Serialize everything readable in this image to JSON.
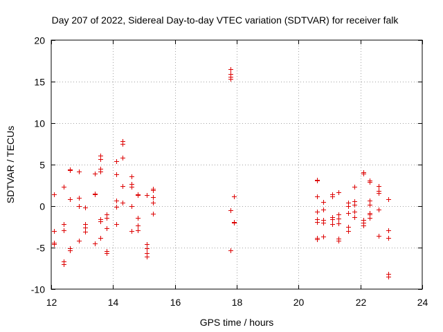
{
  "chart_data": {
    "type": "scatter",
    "title": "Day 207 of 2022, Sidereal Day-to-day VTEC variation (SDTVAR) for receiver falk",
    "xlabel": "GPS time / hours",
    "ylabel": "SDTVAR / TECUs",
    "xlim": [
      12,
      24
    ],
    "ylim": [
      -10,
      20
    ],
    "xticks": [
      12,
      14,
      16,
      18,
      20,
      22,
      24
    ],
    "yticks": [
      -10,
      -5,
      0,
      5,
      10,
      15,
      20
    ],
    "xtick_labels": [
      "12",
      "14",
      "16",
      "18",
      "20",
      "22",
      "24"
    ],
    "ytick_labels": [
      "-10",
      "-5",
      "0",
      "5",
      "10",
      "15",
      "20"
    ],
    "grid": true,
    "marker": "plus",
    "series": [
      {
        "name": "SDTVAR",
        "color": "#dd0000",
        "points": [
          [
            12.1,
            1.4
          ],
          [
            12.1,
            -3.0
          ],
          [
            12.1,
            -4.4
          ],
          [
            12.1,
            -4.6
          ],
          [
            12.4,
            2.3
          ],
          [
            12.4,
            -2.2
          ],
          [
            12.4,
            -2.9
          ],
          [
            12.4,
            -6.7
          ],
          [
            12.4,
            -7.0
          ],
          [
            12.6,
            4.4
          ],
          [
            12.6,
            4.3
          ],
          [
            12.6,
            0.8
          ],
          [
            12.6,
            -5.1
          ],
          [
            12.6,
            -5.3
          ],
          [
            12.9,
            4.2
          ],
          [
            12.9,
            1.0
          ],
          [
            12.9,
            0.0
          ],
          [
            12.9,
            -4.2
          ],
          [
            13.1,
            -0.2
          ],
          [
            13.1,
            -2.2
          ],
          [
            13.1,
            -2.6
          ],
          [
            13.1,
            -3.1
          ],
          [
            13.4,
            3.9
          ],
          [
            13.4,
            1.5
          ],
          [
            13.4,
            1.4
          ],
          [
            13.4,
            -4.5
          ],
          [
            13.6,
            6.1
          ],
          [
            13.6,
            5.7
          ],
          [
            13.6,
            4.5
          ],
          [
            13.6,
            4.2
          ],
          [
            13.6,
            -1.6
          ],
          [
            13.6,
            -1.8
          ],
          [
            13.6,
            -3.8
          ],
          [
            13.8,
            -1.0
          ],
          [
            13.8,
            -1.4
          ],
          [
            13.8,
            -2.7
          ],
          [
            13.8,
            -5.4
          ],
          [
            13.8,
            -5.7
          ],
          [
            14.1,
            5.4
          ],
          [
            14.1,
            3.8
          ],
          [
            14.1,
            0.7
          ],
          [
            14.1,
            -0.1
          ],
          [
            14.1,
            -2.2
          ],
          [
            14.3,
            7.8
          ],
          [
            14.3,
            7.5
          ],
          [
            14.3,
            5.8
          ],
          [
            14.3,
            2.4
          ],
          [
            14.3,
            0.4
          ],
          [
            14.6,
            3.6
          ],
          [
            14.6,
            2.7
          ],
          [
            14.6,
            2.3
          ],
          [
            14.6,
            0.0
          ],
          [
            14.6,
            -3.0
          ],
          [
            14.8,
            1.4
          ],
          [
            14.8,
            1.3
          ],
          [
            14.8,
            -1.4
          ],
          [
            14.8,
            -2.3
          ],
          [
            14.8,
            -2.9
          ],
          [
            15.1,
            1.3
          ],
          [
            15.1,
            -4.6
          ],
          [
            15.1,
            -5.1
          ],
          [
            15.1,
            -5.7
          ],
          [
            15.1,
            -6.1
          ],
          [
            15.3,
            2.1
          ],
          [
            15.3,
            1.9
          ],
          [
            15.3,
            1.1
          ],
          [
            15.3,
            0.4
          ],
          [
            15.3,
            -0.9
          ],
          [
            17.8,
            16.5
          ],
          [
            17.8,
            15.9
          ],
          [
            17.8,
            15.6
          ],
          [
            17.8,
            15.3
          ],
          [
            17.8,
            -0.5
          ],
          [
            17.8,
            -5.3
          ],
          [
            17.9,
            1.2
          ],
          [
            17.9,
            -1.9
          ],
          [
            17.9,
            -2.0
          ],
          [
            20.6,
            3.2
          ],
          [
            20.6,
            3.1
          ],
          [
            20.6,
            1.2
          ],
          [
            20.6,
            -0.7
          ],
          [
            20.6,
            -1.6
          ],
          [
            20.6,
            -1.9
          ],
          [
            20.6,
            -3.8
          ],
          [
            20.6,
            -4.0
          ],
          [
            20.8,
            0.5
          ],
          [
            20.8,
            -0.4
          ],
          [
            20.8,
            -1.7
          ],
          [
            20.8,
            -2.0
          ],
          [
            20.8,
            -3.7
          ],
          [
            21.1,
            1.4
          ],
          [
            21.1,
            1.2
          ],
          [
            21.1,
            -1.3
          ],
          [
            21.1,
            -1.6
          ],
          [
            21.1,
            -2.2
          ],
          [
            21.3,
            1.7
          ],
          [
            21.3,
            -1.0
          ],
          [
            21.3,
            -1.5
          ],
          [
            21.3,
            -2.1
          ],
          [
            21.3,
            -3.9
          ],
          [
            21.3,
            -4.2
          ],
          [
            21.6,
            0.4
          ],
          [
            21.6,
            0.0
          ],
          [
            21.6,
            -0.8
          ],
          [
            21.6,
            -2.5
          ],
          [
            21.6,
            -3.0
          ],
          [
            21.8,
            2.3
          ],
          [
            21.8,
            0.6
          ],
          [
            21.8,
            0.2
          ],
          [
            21.8,
            -0.7
          ],
          [
            21.8,
            -1.3
          ],
          [
            22.1,
            4.1
          ],
          [
            22.1,
            3.9
          ],
          [
            22.1,
            -1.7
          ],
          [
            22.1,
            -2.0
          ],
          [
            22.1,
            -2.3
          ],
          [
            22.3,
            3.1
          ],
          [
            22.3,
            2.9
          ],
          [
            22.3,
            0.7
          ],
          [
            22.3,
            0.2
          ],
          [
            22.3,
            -0.8
          ],
          [
            22.3,
            -1.0
          ],
          [
            22.3,
            -1.4
          ],
          [
            22.6,
            2.4
          ],
          [
            22.6,
            1.8
          ],
          [
            22.6,
            1.6
          ],
          [
            22.6,
            -0.4
          ],
          [
            22.6,
            -3.6
          ],
          [
            22.9,
            0.8
          ],
          [
            22.9,
            -2.9
          ],
          [
            22.9,
            -3.8
          ],
          [
            22.9,
            -8.2
          ],
          [
            22.9,
            -8.5
          ]
        ]
      }
    ]
  }
}
